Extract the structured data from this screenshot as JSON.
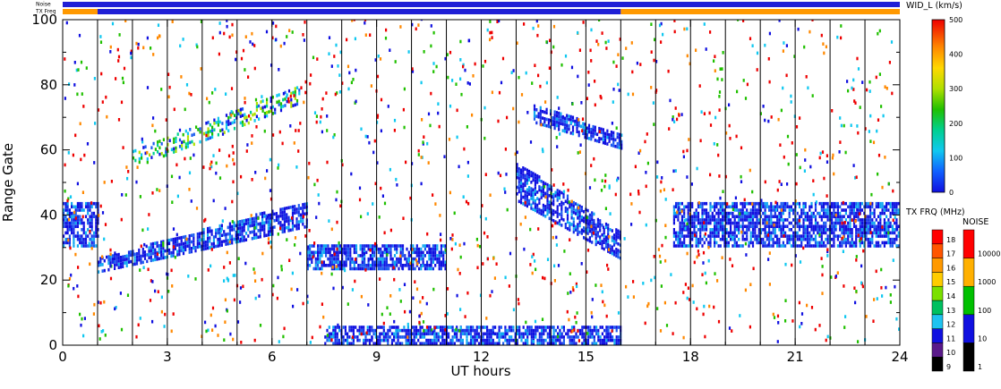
{
  "chart_data": {
    "type": "heatmap",
    "title": "",
    "xlabel": "UT hours",
    "ylabel": "Range Gate",
    "xlim": [
      0,
      24
    ],
    "ylim": [
      0,
      100
    ],
    "x_ticks": [
      "0",
      "3",
      "6",
      "9",
      "12",
      "15",
      "18",
      "21",
      "24"
    ],
    "x_tick_values": [
      0,
      3,
      6,
      9,
      12,
      15,
      18,
      21,
      24
    ],
    "y_ticks": [
      "0",
      "20",
      "40",
      "60",
      "80",
      "100"
    ],
    "y_tick_values": [
      0,
      20,
      40,
      60,
      80,
      100
    ],
    "scan_boundaries_hours": [
      1,
      2,
      3,
      4,
      5,
      6,
      7,
      8,
      9,
      10,
      11,
      12,
      13,
      14,
      15,
      16,
      17,
      18,
      19,
      20,
      21,
      22,
      23
    ],
    "status_bars": [
      {
        "label": "Noise",
        "segments": [
          {
            "from": 0,
            "to": 24,
            "color": "#1f1fd6"
          }
        ]
      },
      {
        "label": "TX Freq",
        "segments": [
          {
            "from": 0,
            "to": 1,
            "color": "#ff9900"
          },
          {
            "from": 1,
            "to": 16,
            "color": "#1f1fd6"
          },
          {
            "from": 16,
            "to": 24,
            "color": "#ff9900"
          }
        ]
      }
    ],
    "colorbars": [
      {
        "title": "WID_L (km/s)",
        "range": [
          0,
          500
        ],
        "tick_labels": [
          "0",
          "100",
          "200",
          "300",
          "400",
          "500"
        ],
        "tick_values": [
          0,
          100,
          200,
          300,
          400,
          500
        ]
      },
      {
        "title": "TX FRQ (MHz)",
        "tick_labels": [
          "9",
          "10",
          "11",
          "12",
          "13",
          "14",
          "15",
          "16",
          "17",
          "18"
        ],
        "colors": [
          "#000000",
          "#5a1a8a",
          "#1010e0",
          "#1fc3f0",
          "#00c060",
          "#7be000",
          "#ffcc00",
          "#ff9900",
          "#ff5500",
          "#ff0000"
        ]
      },
      {
        "title": "NOISE",
        "tick_labels": [
          "1",
          "10",
          "100",
          "1000",
          "10000"
        ],
        "colors": [
          "#000000",
          "#1010e0",
          "#00c000",
          "#ffb000",
          "#ff0000"
        ]
      }
    ],
    "series": [
      {
        "name": "",
        "region": "low band",
        "x_range": [
          0,
          1
        ],
        "gate_range": [
          30,
          44
        ],
        "value": "low"
      },
      {
        "name": "",
        "region": "rising band",
        "x_range": [
          1,
          7
        ],
        "gate_start": [
          22,
          26
        ],
        "gate_end": [
          36,
          44
        ],
        "value": "low"
      },
      {
        "name": "",
        "region": "upper band",
        "x_range": [
          2,
          6.8
        ],
        "gate_start": [
          54,
          60
        ],
        "gate_end": [
          74,
          80
        ],
        "value": "mixed"
      },
      {
        "name": "",
        "region": "flat band",
        "x_range": [
          7,
          11
        ],
        "gate_range": [
          23,
          31
        ],
        "value": "low"
      },
      {
        "name": "",
        "region": "near range",
        "x_range": [
          7.5,
          16
        ],
        "gate_range": [
          0,
          6
        ],
        "value": "low"
      },
      {
        "name": "",
        "region": "descending band",
        "x_range": [
          13,
          16
        ],
        "gate_start": [
          44,
          56
        ],
        "gate_end": [
          26,
          34
        ],
        "value": "low"
      },
      {
        "name": "",
        "region": "upper descending",
        "x_range": [
          13.5,
          16
        ],
        "gate_start": [
          68,
          74
        ],
        "gate_end": [
          60,
          64
        ],
        "value": "low"
      },
      {
        "name": "",
        "region": "late band",
        "x_range": [
          17.5,
          24
        ],
        "gate_range": [
          30,
          44
        ],
        "value": "low"
      }
    ],
    "grid": false,
    "legend": "right"
  },
  "labels": {
    "noise_bar": "Noise",
    "txfreq_bar": "TX Freq",
    "wid_title": "WID_L (km/s)",
    "txfrq_title": "TX FRQ (MHz)",
    "noise_title": "NOISE"
  },
  "colors": {
    "noise_bar": "#1f1fd6",
    "tx_blue": "#1f1fd6",
    "tx_orange": "#ff9900"
  }
}
